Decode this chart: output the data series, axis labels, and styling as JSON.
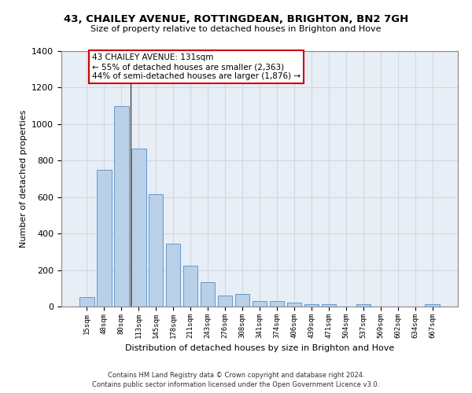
{
  "title1": "43, CHAILEY AVENUE, ROTTINGDEAN, BRIGHTON, BN2 7GH",
  "title2": "Size of property relative to detached houses in Brighton and Hove",
  "xlabel": "Distribution of detached houses by size in Brighton and Hove",
  "ylabel": "Number of detached properties",
  "categories": [
    "15sqm",
    "48sqm",
    "80sqm",
    "113sqm",
    "145sqm",
    "178sqm",
    "211sqm",
    "243sqm",
    "276sqm",
    "308sqm",
    "341sqm",
    "374sqm",
    "406sqm",
    "439sqm",
    "471sqm",
    "504sqm",
    "537sqm",
    "569sqm",
    "602sqm",
    "634sqm",
    "667sqm"
  ],
  "values": [
    50,
    750,
    1100,
    865,
    615,
    345,
    225,
    135,
    60,
    70,
    30,
    30,
    22,
    15,
    15,
    0,
    12,
    0,
    0,
    0,
    12
  ],
  "bar_color": "#b8d0e8",
  "bar_edge_color": "#6699cc",
  "grid_color": "#d0d8e0",
  "bg_color": "#e8eef5",
  "annotation_line1": "43 CHAILEY AVENUE: 131sqm",
  "annotation_line2": "← 55% of detached houses are smaller (2,363)",
  "annotation_line3": "44% of semi-detached houses are larger (1,876) →",
  "annotation_box_color": "#ffffff",
  "annotation_border_color": "#cc0000",
  "vline_x": 2.55,
  "ylim": [
    0,
    1400
  ],
  "yticks": [
    0,
    200,
    400,
    600,
    800,
    1000,
    1200,
    1400
  ],
  "footer1": "Contains HM Land Registry data © Crown copyright and database right 2024.",
  "footer2": "Contains public sector information licensed under the Open Government Licence v3.0."
}
